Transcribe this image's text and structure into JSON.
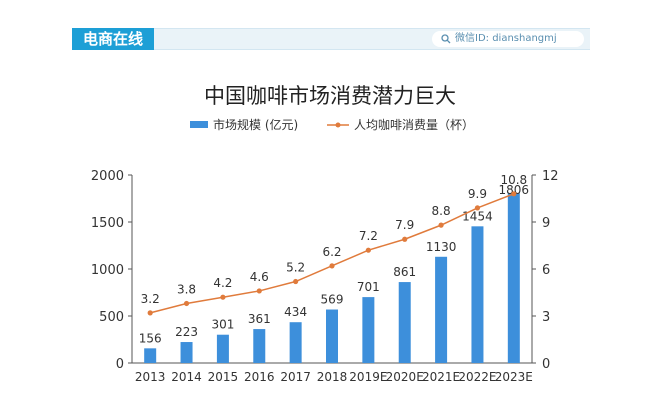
{
  "header": {
    "brand": "电商在线",
    "wechat_id": "微信ID: dianshangmj"
  },
  "colors": {
    "bar": "#3d8fdb",
    "line": "#e07b3c",
    "brand": "#1d9fd6"
  },
  "chart_data": {
    "type": "bar",
    "title": "中国咖啡市场消费潜力巨大",
    "categories": [
      "2013",
      "2014",
      "2015",
      "2016",
      "2017",
      "2018",
      "2019E",
      "2020E",
      "2021E",
      "2022E",
      "2023E"
    ],
    "series": [
      {
        "name": "市场规模 (亿元)",
        "type": "bar",
        "axis": "left",
        "values": [
          156,
          223,
          301,
          361,
          434,
          569,
          701,
          861,
          1130,
          1454,
          1806
        ]
      },
      {
        "name": "人均咖啡消费量（杯）",
        "type": "line",
        "axis": "right",
        "values": [
          3.2,
          3.8,
          4.2,
          4.6,
          5.2,
          6.2,
          7.2,
          7.9,
          8.8,
          9.9,
          10.8
        ]
      }
    ],
    "y_left": {
      "ylim": [
        0,
        2000
      ],
      "ticks": [
        "0",
        "500",
        "1000",
        "1500",
        "2000"
      ]
    },
    "y_right": {
      "ylim": [
        0,
        12
      ],
      "ticks": [
        "0",
        "3",
        "6",
        "9",
        "12"
      ]
    },
    "legend_position": "top-center",
    "grid": false
  }
}
